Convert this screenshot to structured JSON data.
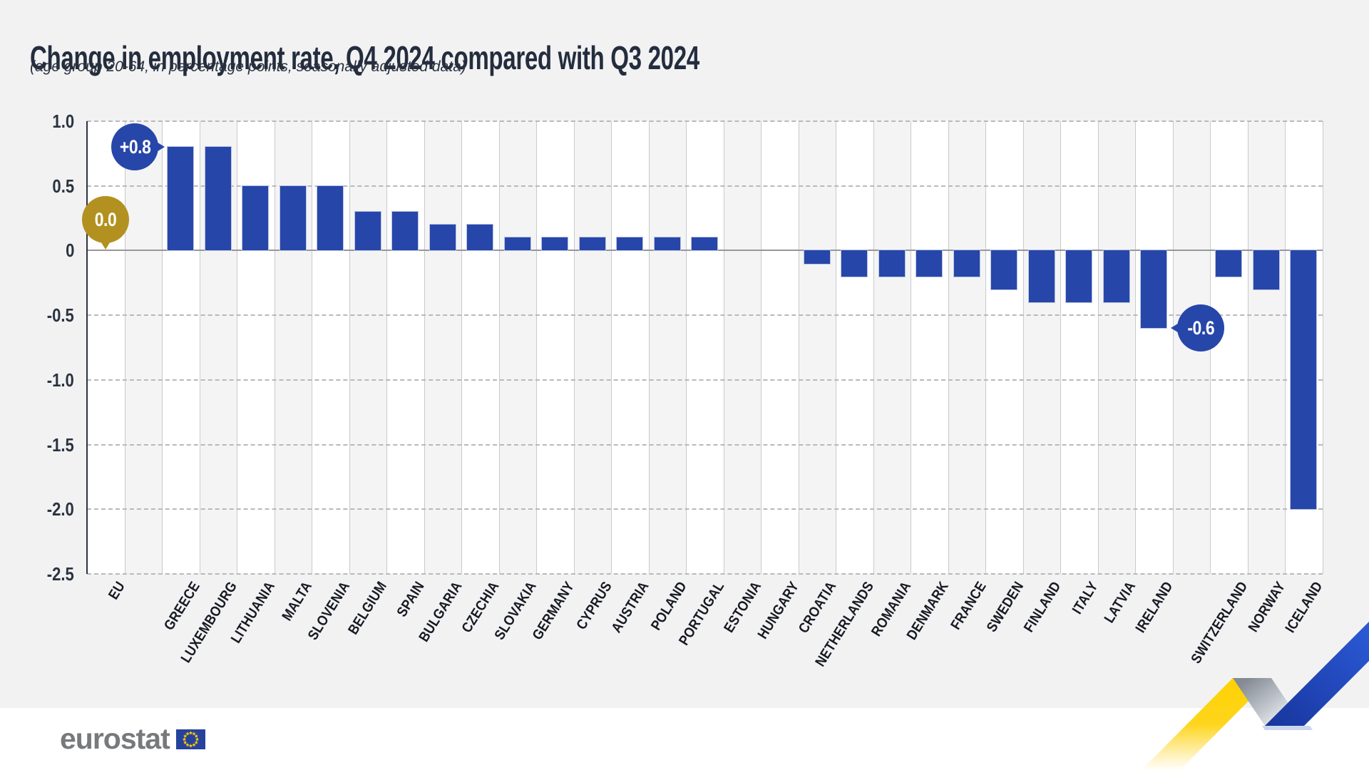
{
  "header": {
    "title": "Change in employment rate, Q4 2024 compared with Q3 2024",
    "subtitle": "(age group 20-64, in percentage points, seasonally adjusted data)"
  },
  "chart_data": {
    "type": "bar",
    "title": "Change in employment rate, Q4 2024 compared with Q3 2024",
    "subtitle": "(age group 20-64, in percentage points, seasonally adjusted data)",
    "unit": "percentage points",
    "categories": [
      "EU",
      "GREECE",
      "LUXEMBOURG",
      "LITHUANIA",
      "MALTA",
      "SLOVENIA",
      "BELGIUM",
      "SPAIN",
      "BULGARIA",
      "CZECHIA",
      "SLOVAKIA",
      "GERMANY",
      "CYPRUS",
      "AUSTRIA",
      "POLAND",
      "PORTUGAL",
      "ESTONIA",
      "HUNGARY",
      "CROATIA",
      "NETHERLANDS",
      "ROMANIA",
      "DENMARK",
      "FRANCE",
      "SWEDEN",
      "FINLAND",
      "ITALY",
      "LATVIA",
      "IRELAND",
      "SWITZERLAND",
      "NORWAY",
      "ICELAND"
    ],
    "values": [
      0.0,
      0.8,
      0.8,
      0.5,
      0.5,
      0.5,
      0.3,
      0.3,
      0.2,
      0.2,
      0.1,
      0.1,
      0.1,
      0.1,
      0.1,
      0.1,
      0.0,
      0.0,
      -0.1,
      -0.2,
      -0.2,
      -0.2,
      -0.2,
      -0.3,
      -0.4,
      -0.4,
      -0.4,
      -0.6,
      -0.2,
      -0.3,
      -2.0
    ],
    "group_gap_after": [
      "EU",
      "IRELAND"
    ],
    "ylim": [
      -2.5,
      1.0
    ],
    "yticks": [
      {
        "label": "1.0",
        "v": 1.0
      },
      {
        "label": "0.5",
        "v": 0.5
      },
      {
        "label": "0",
        "v": 0.0
      },
      {
        "label": "-0.5",
        "v": -0.5
      },
      {
        "label": "-1.0",
        "v": -1.0
      },
      {
        "label": "-1.5",
        "v": -1.5
      },
      {
        "label": "-2.0",
        "v": -2.0
      },
      {
        "label": "-2.5",
        "v": -2.5
      }
    ],
    "grid": "horizontal-dashed, alternating column bands",
    "legend": "none",
    "bar_color": "#2746a9",
    "annotations": [
      {
        "category": "EU",
        "label": "0.0",
        "color": "#b29120",
        "tail": "down"
      },
      {
        "category": "GREECE",
        "label": "+0.8",
        "color": "#2746a9",
        "tail": "right"
      },
      {
        "category": "IRELAND",
        "label": "-0.6",
        "color": "#2746a9",
        "tail": "left"
      }
    ]
  },
  "footer": {
    "logo_text": "eurostat",
    "flag_color": "#26429c",
    "star_color": "#ffcc00"
  },
  "decoration": {
    "ribbon_yellow": "#ffd203",
    "ribbon_silver": "#878e97",
    "ribbon_blue_dark": "#17359c",
    "ribbon_blue_bright": "#2b59d6"
  }
}
